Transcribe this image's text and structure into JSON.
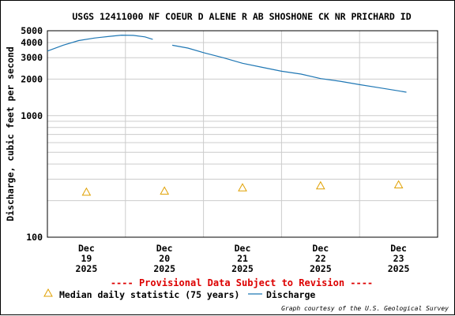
{
  "chart_data": {
    "type": "line",
    "title": "USGS 12411000 NF COEUR D ALENE R AB SHOSHONE CK NR PRICHARD ID",
    "ylabel": "Discharge, cubic feet per second",
    "xlabel": "",
    "y_scale": "log",
    "ylim": [
      100,
      5000
    ],
    "y_ticks": [
      {
        "value": 100,
        "label": "100"
      },
      {
        "value": 1000,
        "label": "1000"
      },
      {
        "value": 2000,
        "label": "2000"
      },
      {
        "value": 3000,
        "label": "3000"
      },
      {
        "value": 4000,
        "label": "4000"
      },
      {
        "value": 5000,
        "label": "5000"
      }
    ],
    "y_minor_gridlines": [
      200,
      300,
      400,
      500,
      600,
      700,
      800,
      900
    ],
    "x_range_days": [
      18.5,
      23.5
    ],
    "x_ticks": [
      {
        "day": 19,
        "line1": "Dec",
        "line2": "19",
        "line3": "2025"
      },
      {
        "day": 20,
        "line1": "Dec",
        "line2": "20",
        "line3": "2025"
      },
      {
        "day": 21,
        "line1": "Dec",
        "line2": "21",
        "line3": "2025"
      },
      {
        "day": 22,
        "line1": "Dec",
        "line2": "22",
        "line3": "2025"
      },
      {
        "day": 23,
        "line1": "Dec",
        "line2": "23",
        "line3": "2025"
      }
    ],
    "grid": true,
    "legend_position": "bottom",
    "series": [
      {
        "name": "Discharge",
        "color": "#1f77b4",
        "segments": [
          [
            {
              "day": 18.5,
              "value": 3400
            },
            {
              "day": 18.7,
              "value": 3800
            },
            {
              "day": 18.9,
              "value": 4150
            },
            {
              "day": 19.1,
              "value": 4350
            },
            {
              "day": 19.3,
              "value": 4500
            },
            {
              "day": 19.45,
              "value": 4600
            },
            {
              "day": 19.6,
              "value": 4580
            },
            {
              "day": 19.75,
              "value": 4450
            },
            {
              "day": 19.85,
              "value": 4250
            }
          ],
          [
            {
              "day": 20.1,
              "value": 3800
            },
            {
              "day": 20.3,
              "value": 3600
            },
            {
              "day": 20.5,
              "value": 3300
            },
            {
              "day": 20.75,
              "value": 3000
            },
            {
              "day": 21.0,
              "value": 2700
            },
            {
              "day": 21.25,
              "value": 2500
            },
            {
              "day": 21.5,
              "value": 2320
            },
            {
              "day": 21.75,
              "value": 2200
            },
            {
              "day": 22.0,
              "value": 2020
            },
            {
              "day": 22.25,
              "value": 1920
            },
            {
              "day": 22.5,
              "value": 1800
            },
            {
              "day": 22.75,
              "value": 1700
            },
            {
              "day": 23.0,
              "value": 1600
            },
            {
              "day": 23.1,
              "value": 1560
            }
          ]
        ]
      }
    ],
    "median_points": {
      "name": "Median daily statistic (75 years)",
      "color": "#e0a000",
      "points": [
        {
          "day": 19,
          "value": 235
        },
        {
          "day": 20,
          "value": 240
        },
        {
          "day": 21,
          "value": 255
        },
        {
          "day": 22,
          "value": 265
        },
        {
          "day": 23,
          "value": 270
        }
      ]
    }
  },
  "notice": "---- Provisional Data Subject to Revision ----",
  "legend": {
    "median_label": "Median daily statistic (75 years)",
    "discharge_label": "Discharge"
  },
  "credit": "Graph courtesy of the U.S. Geological Survey",
  "colors": {
    "grid": "#cccccc",
    "axis": "#000000",
    "notice": "#dd0000",
    "discharge": "#1f77b4",
    "median": "#e0a000"
  }
}
